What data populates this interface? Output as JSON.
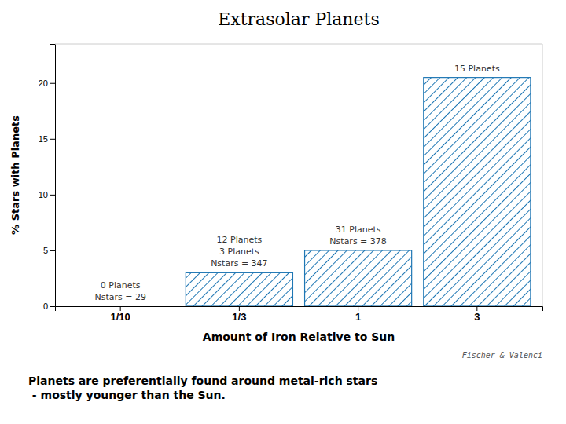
{
  "chart_data": {
    "type": "bar",
    "title": "Extrasolar Planets",
    "xlabel": "Amount of Iron Relative to Sun",
    "ylabel": "% Stars with Planets",
    "categories": [
      "1/10",
      "1/3",
      "1",
      "3"
    ],
    "values": [
      0,
      3.0,
      5.0,
      20.5
    ],
    "ylim": [
      0,
      23.5
    ],
    "yticks": [
      0,
      5,
      10,
      15,
      20
    ],
    "grid": false,
    "annotations": [
      {
        "text": "Nstars = 29",
        "category": "1/10"
      },
      {
        "text": "Nstars = 347",
        "category": "1/3"
      },
      {
        "text": "Nstars = 378",
        "category": "1"
      },
      {
        "text": "0 Planets",
        "category": "1/10"
      },
      {
        "text": "3 Planets",
        "category": "1/3"
      },
      {
        "text": "12 Planets",
        "category": "1/3"
      },
      {
        "text": "31 Planets",
        "category": "1"
      },
      {
        "text": "15 Planets",
        "category": "3"
      }
    ],
    "credit": "Fischer & Valenci",
    "caption": "Planets are preferentially found around metal-rich stars\n - mostly younger than the Sun."
  }
}
